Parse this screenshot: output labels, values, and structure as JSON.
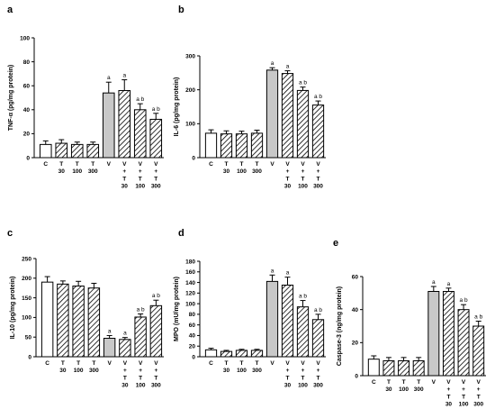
{
  "colors": {
    "control": "#ffffff",
    "vehicle": "#c8c8c8",
    "hatch_line": "#000000",
    "axis": "#000000"
  },
  "chart_data": [
    {
      "panel": "a",
      "type": "bar",
      "ylabel": "TNF-α (pg/mg protein)",
      "ylim": [
        0,
        100
      ],
      "yticks": [
        0,
        20,
        40,
        60,
        80,
        100
      ],
      "categories": [
        [
          "C"
        ],
        [
          "T",
          "30"
        ],
        [
          "T",
          "100"
        ],
        [
          "T",
          "300"
        ],
        [
          "V"
        ],
        [
          "V",
          "+",
          "T",
          "30"
        ],
        [
          "V",
          "+",
          "T",
          "100"
        ],
        [
          "V",
          "+",
          "T",
          "300"
        ]
      ],
      "values": [
        11,
        12,
        11,
        11,
        54,
        56,
        40,
        32
      ],
      "errors": [
        3,
        3,
        2,
        2,
        9,
        9,
        5,
        5
      ],
      "fills": [
        "white",
        "hatch",
        "hatch",
        "hatch",
        "gray",
        "hatch",
        "hatch",
        "hatch"
      ],
      "sig": [
        "",
        "",
        "",
        "",
        "a",
        "a",
        "a b",
        "a b"
      ]
    },
    {
      "panel": "b",
      "type": "bar",
      "ylabel": "IL-6 (pg/mg protein)",
      "ylim": [
        0,
        300
      ],
      "yticks": [
        0,
        100,
        200,
        300
      ],
      "categories": [
        [
          "C"
        ],
        [
          "T",
          "30"
        ],
        [
          "T",
          "100"
        ],
        [
          "T",
          "300"
        ],
        [
          "V"
        ],
        [
          "V",
          "+",
          "T",
          "30"
        ],
        [
          "V",
          "+",
          "T",
          "100"
        ],
        [
          "V",
          "+",
          "T",
          "300"
        ]
      ],
      "values": [
        72,
        70,
        70,
        72,
        258,
        248,
        198,
        155
      ],
      "errors": [
        10,
        9,
        8,
        9,
        7,
        8,
        10,
        12
      ],
      "fills": [
        "white",
        "hatch",
        "hatch",
        "hatch",
        "gray",
        "hatch",
        "hatch",
        "hatch"
      ],
      "sig": [
        "",
        "",
        "",
        "",
        "a",
        "a",
        "a b",
        "a b"
      ]
    },
    {
      "panel": "c",
      "type": "bar",
      "ylabel": "IL-10 (pg/mg protein)",
      "ylim": [
        0,
        250
      ],
      "yticks": [
        0,
        50,
        100,
        150,
        200,
        250
      ],
      "categories": [
        [
          "C"
        ],
        [
          "T",
          "30"
        ],
        [
          "T",
          "100"
        ],
        [
          "T",
          "300"
        ],
        [
          "V"
        ],
        [
          "V",
          "+",
          "T",
          "30"
        ],
        [
          "V",
          "+",
          "T",
          "100"
        ],
        [
          "V",
          "+",
          "T",
          "300"
        ]
      ],
      "values": [
        190,
        185,
        180,
        175,
        47,
        44,
        101,
        130
      ],
      "errors": [
        14,
        8,
        12,
        12,
        7,
        5,
        8,
        14
      ],
      "fills": [
        "white",
        "hatch",
        "hatch",
        "hatch",
        "gray",
        "hatch",
        "hatch",
        "hatch"
      ],
      "sig": [
        "",
        "",
        "",
        "",
        "a",
        "a",
        "a b",
        "a b"
      ]
    },
    {
      "panel": "d",
      "type": "bar",
      "ylabel": "MPO (mU/mg protein)",
      "ylim": [
        0,
        180
      ],
      "yticks": [
        0,
        20,
        40,
        60,
        80,
        100,
        120,
        140,
        160,
        180
      ],
      "categories": [
        [
          "C"
        ],
        [
          "T",
          "30"
        ],
        [
          "T",
          "100"
        ],
        [
          "T",
          "300"
        ],
        [
          "V"
        ],
        [
          "V",
          "+",
          "T",
          "30"
        ],
        [
          "V",
          "+",
          "T",
          "100"
        ],
        [
          "V",
          "+",
          "T",
          "300"
        ]
      ],
      "values": [
        13,
        10,
        12,
        12,
        142,
        135,
        94,
        70
      ],
      "errors": [
        3,
        2,
        2,
        2,
        12,
        15,
        12,
        10
      ],
      "fills": [
        "white",
        "hatch",
        "hatch",
        "hatch",
        "gray",
        "hatch",
        "hatch",
        "hatch"
      ],
      "sig": [
        "",
        "",
        "",
        "",
        "a",
        "a",
        "a b",
        "a b"
      ]
    },
    {
      "panel": "e",
      "type": "bar",
      "ylabel": "Caspase-3 (ng/mg protein)",
      "ylim": [
        0,
        60
      ],
      "yticks": [
        0,
        20,
        40,
        60
      ],
      "categories": [
        [
          "C"
        ],
        [
          "T",
          "30"
        ],
        [
          "T",
          "100"
        ],
        [
          "T",
          "300"
        ],
        [
          "V"
        ],
        [
          "V",
          "+",
          "T",
          "30"
        ],
        [
          "V",
          "+",
          "T",
          "100"
        ],
        [
          "V",
          "+",
          "T",
          "300"
        ]
      ],
      "values": [
        10,
        9,
        9,
        9,
        51,
        51,
        40,
        30
      ],
      "errors": [
        2,
        2,
        2,
        2,
        3,
        2,
        3,
        3
      ],
      "fills": [
        "white",
        "hatch",
        "hatch",
        "hatch",
        "gray",
        "hatch",
        "hatch",
        "hatch"
      ],
      "sig": [
        "",
        "",
        "",
        "",
        "a",
        "a",
        "a b",
        "a b"
      ]
    }
  ]
}
